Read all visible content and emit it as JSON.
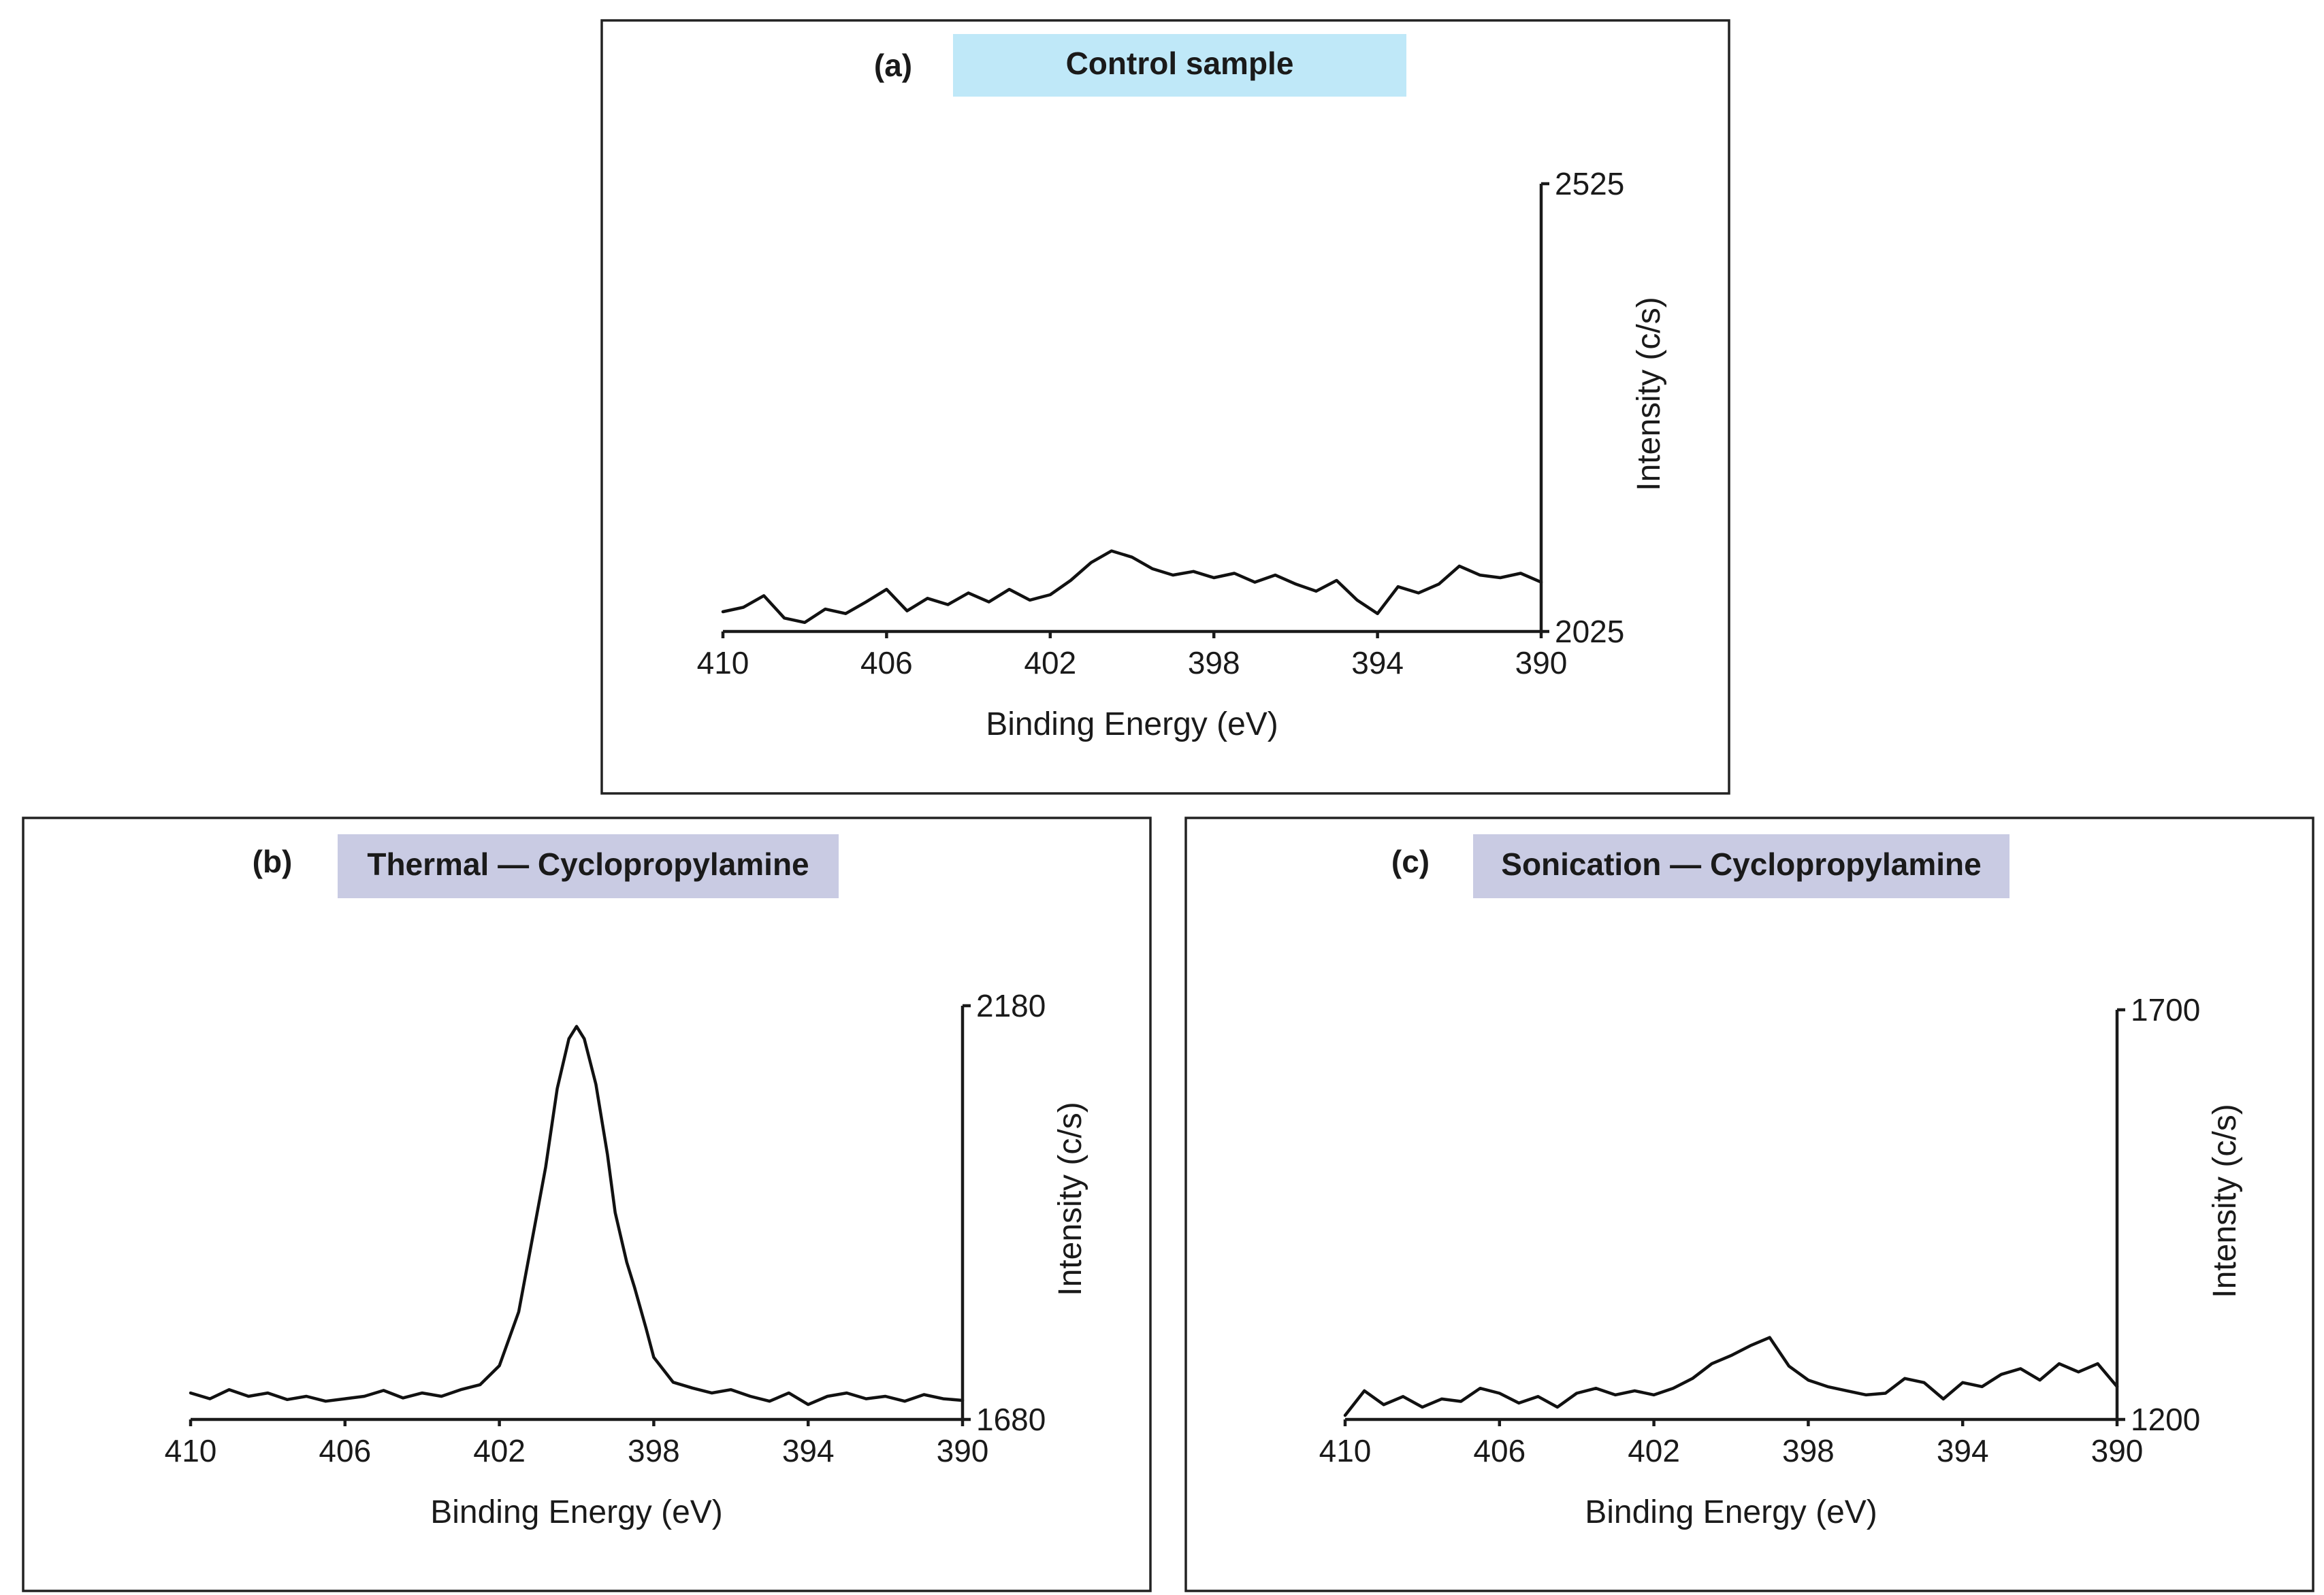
{
  "chart_data": [
    {
      "type": "line",
      "panel_label": "(a)",
      "title": "Control sample",
      "title_bg": "#bfe8f8",
      "xlabel": "Binding Energy (eV)",
      "ylabel": "Intensity (c/s)",
      "xlim": [
        410,
        390
      ],
      "ylim": [
        2025,
        2525
      ],
      "x_ticks": [
        410,
        406,
        402,
        398,
        394,
        390
      ],
      "y_tick_labels": [
        "2525",
        "2025"
      ],
      "x": [
        410,
        409.5,
        409,
        408.5,
        408,
        407.5,
        407,
        406.5,
        406,
        405.5,
        405,
        404.5,
        404,
        403.5,
        403,
        402.5,
        402,
        401.5,
        401,
        400.5,
        400,
        399.5,
        399,
        398.5,
        398,
        397.5,
        397,
        396.5,
        396,
        395.5,
        395,
        394.5,
        394,
        393.5,
        393,
        392.5,
        392,
        391.5,
        391,
        390.5,
        390
      ],
      "y": [
        2047,
        2052,
        2065,
        2040,
        2035,
        2050,
        2045,
        2058,
        2072,
        2048,
        2062,
        2055,
        2068,
        2058,
        2072,
        2060,
        2066,
        2082,
        2102,
        2115,
        2108,
        2095,
        2088,
        2092,
        2085,
        2090,
        2080,
        2088,
        2078,
        2070,
        2082,
        2060,
        2045,
        2075,
        2068,
        2078,
        2098,
        2088,
        2085,
        2090,
        2080
      ]
    },
    {
      "type": "line",
      "panel_label": "(b)",
      "title": "Thermal — Cyclopropylamine",
      "title_bg": "#c9cbe3",
      "xlabel": "Binding Energy (eV)",
      "ylabel": "Intensity (c/s)",
      "xlim": [
        410,
        390
      ],
      "ylim": [
        1680,
        2180
      ],
      "x_ticks": [
        410,
        406,
        402,
        398,
        394,
        390
      ],
      "y_tick_labels": [
        "2180",
        "1680"
      ],
      "x": [
        410,
        409.5,
        409,
        408.5,
        408,
        407.5,
        407,
        406.5,
        406,
        405.5,
        405,
        404.5,
        404,
        403.5,
        403,
        402.5,
        402,
        401.5,
        401.2,
        400.8,
        400.5,
        400.2,
        400,
        399.8,
        399.5,
        399.2,
        399,
        398.7,
        398.5,
        398.2,
        398,
        397.5,
        397,
        396.5,
        396,
        395.5,
        395,
        394.5,
        394,
        393.5,
        393,
        392.5,
        392,
        391.5,
        391,
        390.5,
        390
      ],
      "y": [
        1712,
        1705,
        1716,
        1708,
        1712,
        1704,
        1708,
        1702,
        1705,
        1708,
        1715,
        1706,
        1712,
        1708,
        1716,
        1722,
        1745,
        1810,
        1885,
        1985,
        2080,
        2140,
        2155,
        2140,
        2085,
        2000,
        1930,
        1870,
        1840,
        1790,
        1755,
        1725,
        1718,
        1712,
        1716,
        1708,
        1702,
        1712,
        1698,
        1708,
        1712,
        1705,
        1708,
        1702,
        1710,
        1705,
        1703
      ]
    },
    {
      "type": "line",
      "panel_label": "(c)",
      "title": "Sonication — Cyclopropylamine",
      "title_bg": "#c9cbe3",
      "xlabel": "Binding Energy (eV)",
      "ylabel": "Intensity (c/s)",
      "xlim": [
        410,
        390
      ],
      "ylim": [
        1200,
        1700
      ],
      "x_ticks": [
        410,
        406,
        402,
        398,
        394,
        390
      ],
      "y_tick_labels": [
        "1700",
        "1200"
      ],
      "x": [
        410,
        409.5,
        409,
        408.5,
        408,
        407.5,
        407,
        406.5,
        406,
        405.5,
        405,
        404.5,
        404,
        403.5,
        403,
        402.5,
        402,
        401.5,
        401,
        400.5,
        400,
        399.5,
        399,
        398.5,
        398,
        397.5,
        397,
        396.5,
        396,
        395.5,
        395,
        394.5,
        394,
        393.5,
        393,
        392.5,
        392,
        391.5,
        391,
        390.5,
        390
      ],
      "y": [
        1205,
        1235,
        1218,
        1228,
        1215,
        1225,
        1222,
        1238,
        1232,
        1220,
        1228,
        1215,
        1232,
        1238,
        1230,
        1235,
        1230,
        1238,
        1250,
        1268,
        1278,
        1290,
        1300,
        1265,
        1248,
        1240,
        1235,
        1230,
        1232,
        1250,
        1245,
        1225,
        1245,
        1240,
        1255,
        1262,
        1248,
        1268,
        1258,
        1268,
        1240
      ]
    }
  ]
}
